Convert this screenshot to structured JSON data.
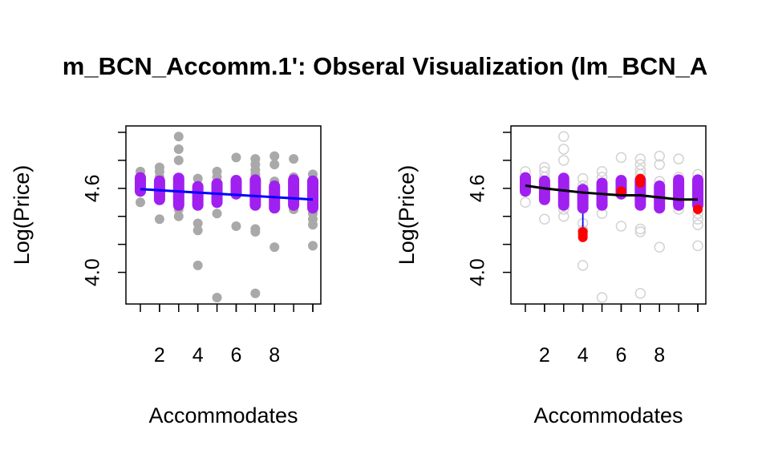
{
  "title": "m_BCN_Accomm.1': Obseral Visualization (lm_BCN_A",
  "colors": {
    "grey_points": "#a9a9a9",
    "light_grey_points": "#d3d3d3",
    "purple_points": "#a020f0",
    "fit_line_left": "#0000ff",
    "fit_line_right": "#000000",
    "residual_segments": "#0000ff",
    "highlight_points": "#ff0000",
    "axes": "#000000"
  },
  "chart_data": [
    {
      "type": "scatter",
      "xlabel": "Accommodates",
      "ylabel": "Log(Price)",
      "xticks": [
        "2",
        "4",
        "6",
        "8"
      ],
      "yticks": [
        "4.0",
        "4.6"
      ],
      "xlim": [
        1,
        10
      ],
      "ylim": [
        3.82,
        5.0
      ],
      "all_points": [
        [
          1,
          4.72
        ],
        [
          1,
          4.5
        ],
        [
          1,
          4.64
        ],
        [
          2,
          4.75
        ],
        [
          2,
          4.72
        ],
        [
          2,
          4.38
        ],
        [
          2,
          4.68
        ],
        [
          3,
          4.97
        ],
        [
          3,
          4.88
        ],
        [
          3,
          4.8
        ],
        [
          3,
          4.45
        ],
        [
          3,
          4.4
        ],
        [
          4,
          4.67
        ],
        [
          4,
          4.35
        ],
        [
          4,
          4.3
        ],
        [
          4,
          4.05
        ],
        [
          4,
          4.62
        ],
        [
          5,
          4.72
        ],
        [
          5,
          4.68
        ],
        [
          5,
          4.42
        ],
        [
          5,
          3.82
        ],
        [
          6,
          4.82
        ],
        [
          6,
          4.33
        ],
        [
          6,
          4.65
        ],
        [
          7,
          4.81
        ],
        [
          7,
          4.77
        ],
        [
          7,
          4.73
        ],
        [
          7,
          4.7
        ],
        [
          7,
          4.31
        ],
        [
          7,
          4.29
        ],
        [
          7,
          3.85
        ],
        [
          8,
          4.83
        ],
        [
          8,
          4.77
        ],
        [
          8,
          4.65
        ],
        [
          8,
          4.46
        ],
        [
          8,
          4.18
        ],
        [
          9,
          4.81
        ],
        [
          9,
          4.68
        ],
        [
          9,
          4.45
        ],
        [
          10,
          4.7
        ],
        [
          10,
          4.6
        ],
        [
          10,
          4.42
        ],
        [
          10,
          4.38
        ],
        [
          10,
          4.34
        ],
        [
          10,
          4.19
        ]
      ],
      "group_ranges": [
        [
          1,
          4.58,
          4.68
        ],
        [
          2,
          4.52,
          4.66
        ],
        [
          3,
          4.48,
          4.68
        ],
        [
          4,
          4.48,
          4.62
        ],
        [
          5,
          4.5,
          4.64
        ],
        [
          6,
          4.56,
          4.66
        ],
        [
          7,
          4.48,
          4.66
        ],
        [
          8,
          4.46,
          4.62
        ],
        [
          9,
          4.48,
          4.66
        ],
        [
          10,
          4.46,
          4.66
        ]
      ],
      "fit_line": [
        [
          1,
          4.595
        ],
        [
          10,
          4.52
        ]
      ]
    },
    {
      "type": "scatter",
      "xlabel": "Accommodates",
      "ylabel": "Log(Price)",
      "xticks": [
        "2",
        "4",
        "6",
        "8"
      ],
      "yticks": [
        "4.0",
        "4.6"
      ],
      "xlim": [
        1,
        10
      ],
      "ylim": [
        3.82,
        5.0
      ],
      "all_points": [
        [
          1,
          4.72
        ],
        [
          1,
          4.5
        ],
        [
          1,
          4.64
        ],
        [
          2,
          4.75
        ],
        [
          2,
          4.72
        ],
        [
          2,
          4.38
        ],
        [
          2,
          4.68
        ],
        [
          3,
          4.97
        ],
        [
          3,
          4.88
        ],
        [
          3,
          4.8
        ],
        [
          3,
          4.45
        ],
        [
          3,
          4.4
        ],
        [
          4,
          4.67
        ],
        [
          4,
          4.35
        ],
        [
          4,
          4.3
        ],
        [
          4,
          4.05
        ],
        [
          4,
          4.62
        ],
        [
          5,
          4.72
        ],
        [
          5,
          4.68
        ],
        [
          5,
          4.42
        ],
        [
          5,
          3.82
        ],
        [
          6,
          4.82
        ],
        [
          6,
          4.33
        ],
        [
          6,
          4.65
        ],
        [
          7,
          4.81
        ],
        [
          7,
          4.77
        ],
        [
          7,
          4.73
        ],
        [
          7,
          4.7
        ],
        [
          7,
          4.31
        ],
        [
          7,
          4.29
        ],
        [
          7,
          3.85
        ],
        [
          8,
          4.83
        ],
        [
          8,
          4.77
        ],
        [
          8,
          4.65
        ],
        [
          8,
          4.46
        ],
        [
          8,
          4.18
        ],
        [
          9,
          4.81
        ],
        [
          9,
          4.68
        ],
        [
          9,
          4.45
        ],
        [
          10,
          4.7
        ],
        [
          10,
          4.6
        ],
        [
          10,
          4.42
        ],
        [
          10,
          4.38
        ],
        [
          10,
          4.34
        ],
        [
          10,
          4.19
        ]
      ],
      "group_ranges": [
        [
          1,
          4.58,
          4.68
        ],
        [
          2,
          4.52,
          4.66
        ],
        [
          3,
          4.48,
          4.68
        ],
        [
          4,
          4.46,
          4.6
        ],
        [
          5,
          4.48,
          4.64
        ],
        [
          6,
          4.56,
          4.66
        ],
        [
          7,
          4.48,
          4.66
        ],
        [
          8,
          4.46,
          4.62
        ],
        [
          9,
          4.48,
          4.66
        ],
        [
          10,
          4.48,
          4.66
        ]
      ],
      "highlighted_points": [
        [
          4,
          4.29
        ],
        [
          4,
          4.27
        ],
        [
          4,
          4.25
        ],
        [
          6,
          4.58
        ],
        [
          7,
          4.67
        ],
        [
          7,
          4.64
        ],
        [
          10,
          4.45
        ]
      ],
      "fit_line": [
        [
          1,
          4.62
        ],
        [
          2,
          4.6
        ],
        [
          3,
          4.585
        ],
        [
          4,
          4.57
        ],
        [
          5,
          4.56
        ],
        [
          6,
          4.55
        ],
        [
          7,
          4.55
        ],
        [
          8,
          4.535
        ],
        [
          9,
          4.52
        ],
        [
          10,
          4.52
        ]
      ]
    }
  ]
}
